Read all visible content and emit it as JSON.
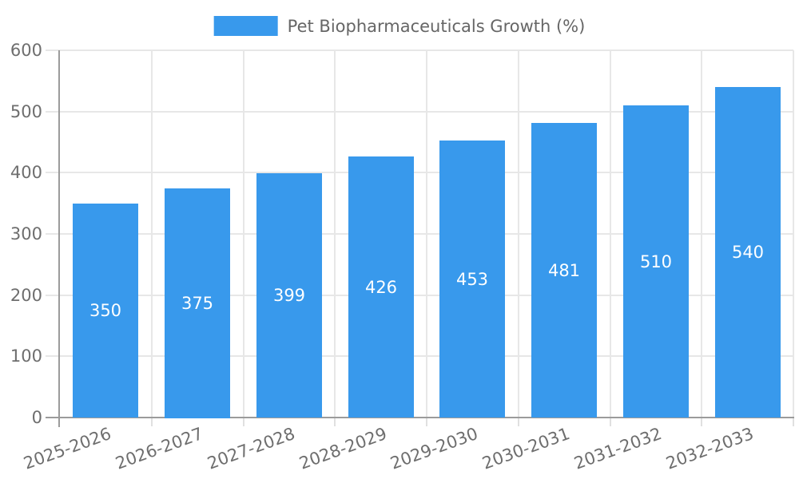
{
  "legend": {
    "label": "Pet Biopharmaceuticals Growth (%)"
  },
  "chart_data": {
    "type": "bar",
    "title": "Pet Biopharmaceuticals Growth (%)",
    "categories": [
      "2025-2026",
      "2026-2027",
      "2027-2028",
      "2028-2029",
      "2029-2030",
      "2030-2031",
      "2031-2032",
      "2032-2033"
    ],
    "values": [
      350,
      375,
      399,
      426,
      453,
      481,
      510,
      540
    ],
    "xlabel": "",
    "ylabel": "",
    "ylim": [
      0,
      600
    ],
    "yticks": [
      0,
      100,
      200,
      300,
      400,
      500,
      600
    ],
    "grid": true,
    "legend_position": "top",
    "value_labels": "inside-center"
  },
  "colors": {
    "bar": "#3899ec",
    "grid": "#e7e7e7",
    "axis": "#9b9b9b",
    "tick_text": "#6e6e6e",
    "legend_text": "#666666",
    "value_label_text": "#ffffff",
    "background": "#ffffff"
  }
}
